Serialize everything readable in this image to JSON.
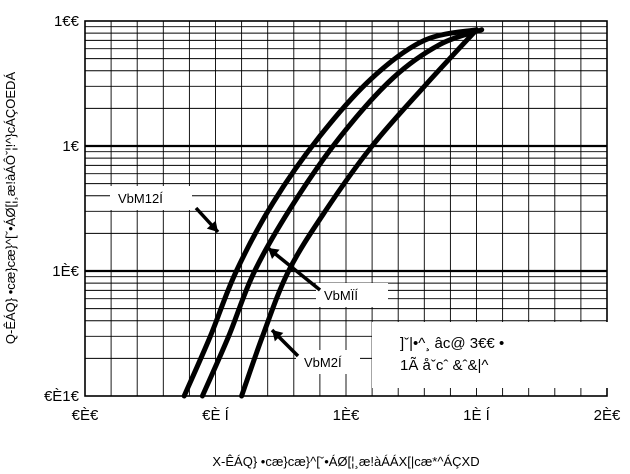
{
  "chart_data": {
    "type": "line",
    "title": "",
    "xlabel": "X-ÊÁQ} •cæ}cæ}^[ˇ•ÁØ[¦¸æ!àÁÁX[|cæ*^ÁÇXD",
    "ylabel": "Q-ÊÁQ} •cæ}cæ}^[ˇ•ÁØ[¦¸æ!àÁÔˇ¦!^}cÁÇOEDÁ",
    "x_ticks": [
      "€È€",
      "€È Í",
      "1È€",
      "1È Í",
      "2È€"
    ],
    "y_ticks": [
      "€È1€",
      "1È€",
      "1€",
      "1€€"
    ],
    "x_tick_values": [
      0,
      0.5,
      1.0,
      1.5,
      2.0
    ],
    "y_tick_values": [
      0.1,
      1,
      10,
      100
    ],
    "xlim": [
      0,
      2.0
    ],
    "ylim": [
      0.1,
      100
    ],
    "y_scale": "log",
    "grid": true,
    "series": [
      {
        "name": "VbM12Í",
        "x": [
          0.38,
          0.48,
          0.58,
          0.72,
          0.9,
          1.1,
          1.3,
          1.5
        ],
        "y": [
          0.1,
          0.3,
          1,
          3.5,
          12,
          35,
          70,
          85
        ]
      },
      {
        "name": "VbMÏÍ",
        "x": [
          0.45,
          0.55,
          0.65,
          0.8,
          0.98,
          1.18,
          1.36,
          1.52
        ],
        "y": [
          0.1,
          0.3,
          1,
          3.5,
          12,
          35,
          65,
          85
        ]
      },
      {
        "name": "VbM2Í",
        "x": [
          0.6,
          0.68,
          0.78,
          0.92,
          1.1,
          1.3,
          1.5
        ],
        "y": [
          0.1,
          0.3,
          1,
          3,
          10,
          30,
          85
        ]
      }
    ],
    "note_lines": [
      "]ˇ|•^¸ âc@ 3€€ •",
      "1Ã åˇcˆ &ˆ&|^"
    ]
  }
}
